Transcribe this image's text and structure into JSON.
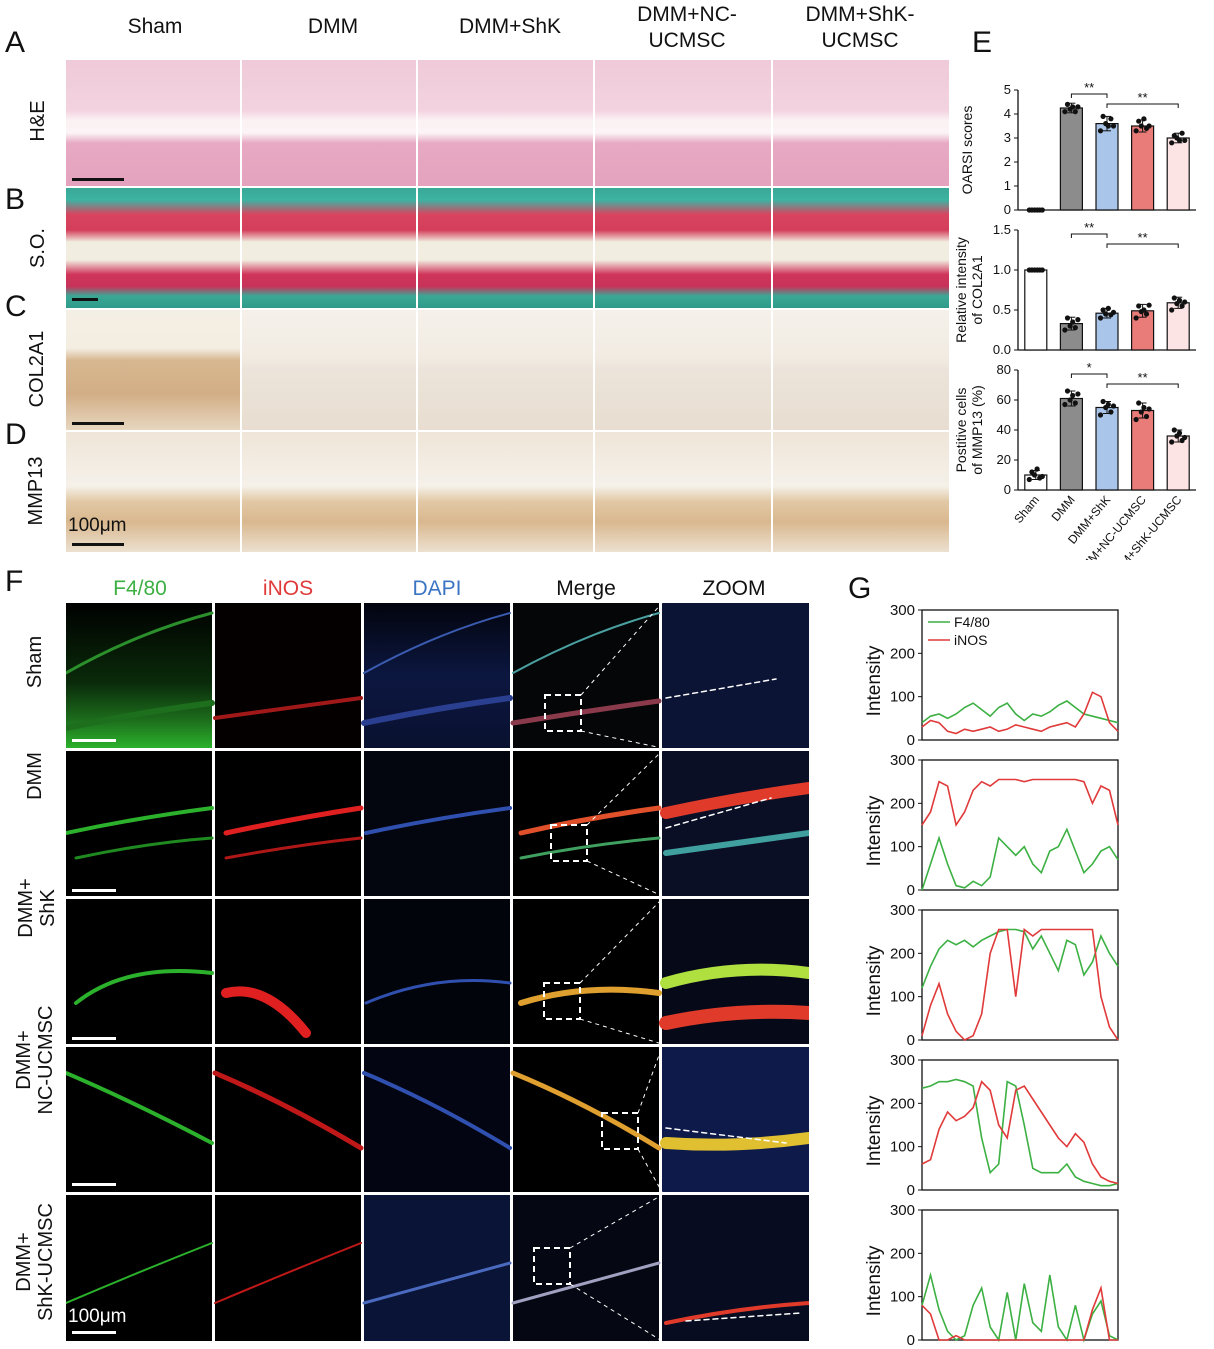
{
  "panel_letters": {
    "A": "A",
    "B": "B",
    "C": "C",
    "D": "D",
    "E": "E",
    "F": "F",
    "G": "G"
  },
  "groups": [
    "Sham",
    "DMM",
    "DMM+ShK",
    "DMM+NC-\nUCMSC",
    "DMM+ShK-\nUCMSC"
  ],
  "stain_rows": [
    "H&E",
    "S.O.",
    "COL2A1",
    "MMP13"
  ],
  "scale_bar_label_top": "100μm",
  "fluor_channels": [
    "F4/80",
    "iNOS",
    "DAPI",
    "Merge",
    "ZOOM"
  ],
  "fluor_rows": [
    "Sham",
    "DMM",
    "DMM+\nShK",
    "DMM+\nNC-UCMSC",
    "DMM+\nShK-UCMSC"
  ],
  "scale_bar_label_fluor": "100μm",
  "chart_data": [
    {
      "panel": "E",
      "type": "bar",
      "ylabel": "OARSI scores",
      "ylim": [
        0,
        5
      ],
      "yticks": [
        0,
        1,
        2,
        3,
        4,
        5
      ],
      "categories": [
        "Sham",
        "DMM",
        "DMM+ShK",
        "DMM+NC-UCMSC",
        "DMM+ShK-UCMSC"
      ],
      "values": [
        0,
        4.25,
        3.6,
        3.5,
        3.0
      ],
      "errors": [
        0,
        0.2,
        0.3,
        0.25,
        0.2
      ],
      "points": [
        [
          0,
          0,
          0,
          0,
          0,
          0
        ],
        [
          4.1,
          4.4,
          4.2,
          4.3,
          4.1,
          4.3
        ],
        [
          3.3,
          3.9,
          3.6,
          3.5,
          3.8,
          3.5
        ],
        [
          3.3,
          3.7,
          3.5,
          3.8,
          3.4,
          3.5
        ],
        [
          2.8,
          3.1,
          3.0,
          2.9,
          3.2,
          2.9
        ]
      ],
      "colors": [
        "#ffffff",
        "#8c8c8c",
        "#a9c5e9",
        "#e97b78",
        "#fde4e4"
      ],
      "significance": [
        {
          "from": 1,
          "to": 2,
          "label": "**"
        },
        {
          "from": 2,
          "to": 4,
          "label": "**"
        }
      ]
    },
    {
      "panel": "E",
      "type": "bar",
      "ylabel": "Relative intensity\nof COL2A1",
      "ylim": [
        0,
        1.5
      ],
      "yticks": [
        0,
        0.5,
        1.0,
        1.5
      ],
      "categories": [
        "Sham",
        "DMM",
        "DMM+ShK",
        "DMM+NC-UCMSC",
        "DMM+ShK-UCMSC"
      ],
      "values": [
        1.0,
        0.33,
        0.46,
        0.49,
        0.59
      ],
      "errors": [
        0,
        0.08,
        0.06,
        0.08,
        0.07
      ],
      "points": [
        [
          1,
          1,
          1,
          1,
          1,
          1
        ],
        [
          0.25,
          0.4,
          0.3,
          0.35,
          0.28,
          0.38
        ],
        [
          0.4,
          0.5,
          0.45,
          0.52,
          0.44,
          0.47
        ],
        [
          0.4,
          0.55,
          0.48,
          0.5,
          0.45,
          0.56
        ],
        [
          0.5,
          0.65,
          0.58,
          0.62,
          0.55,
          0.6
        ]
      ],
      "colors": [
        "#ffffff",
        "#8c8c8c",
        "#a9c5e9",
        "#e97b78",
        "#fde4e4"
      ],
      "significance": [
        {
          "from": 1,
          "to": 2,
          "label": "**"
        },
        {
          "from": 2,
          "to": 4,
          "label": "**"
        }
      ]
    },
    {
      "panel": "E",
      "type": "bar",
      "ylabel": "Postitive cells\nof MMP13 (%)",
      "ylim": [
        0,
        80
      ],
      "yticks": [
        0,
        20,
        40,
        60,
        80
      ],
      "categories": [
        "Sham",
        "DMM",
        "DMM+ShK",
        "DMM+NC-UCMSC",
        "DMM+ShK-UCMSC"
      ],
      "values": [
        10,
        61,
        55,
        53,
        36
      ],
      "errors": [
        3,
        5,
        4,
        5,
        4
      ],
      "points": [
        [
          7,
          12,
          10,
          14,
          8,
          9
        ],
        [
          57,
          66,
          60,
          63,
          58,
          64
        ],
        [
          50,
          59,
          55,
          57,
          52,
          56
        ],
        [
          47,
          58,
          52,
          55,
          49,
          54
        ],
        [
          32,
          40,
          36,
          38,
          33,
          35
        ]
      ],
      "colors": [
        "#ffffff",
        "#8c8c8c",
        "#a9c5e9",
        "#e97b78",
        "#fde4e4"
      ],
      "significance": [
        {
          "from": 1,
          "to": 2,
          "label": "*"
        },
        {
          "from": 2,
          "to": 4,
          "label": "**"
        }
      ]
    },
    {
      "panel": "G",
      "type": "line",
      "ylabel": "Intensity",
      "ylim": [
        0,
        300
      ],
      "yticks": [
        0,
        100,
        200,
        300
      ],
      "legend": [
        "F4/80",
        "iNOS"
      ],
      "legend_position": "top-left",
      "colors": [
        "#3cb043",
        "#e03a3a"
      ],
      "series": [
        {
          "name": "F4/80",
          "values": [
            40,
            55,
            60,
            50,
            60,
            75,
            85,
            70,
            55,
            75,
            85,
            60,
            45,
            60,
            55,
            65,
            80,
            90,
            75,
            60,
            55,
            50,
            45,
            40
          ]
        },
        {
          "name": "iNOS",
          "values": [
            30,
            45,
            40,
            20,
            15,
            25,
            20,
            25,
            30,
            20,
            25,
            35,
            30,
            25,
            20,
            30,
            35,
            40,
            30,
            60,
            110,
            100,
            40,
            20
          ]
        }
      ]
    },
    {
      "panel": "G",
      "type": "line",
      "ylabel": "Intensity",
      "ylim": [
        0,
        300
      ],
      "yticks": [
        0,
        100,
        200,
        300
      ],
      "colors": [
        "#3cb043",
        "#e03a3a"
      ],
      "series": [
        {
          "name": "F4/80",
          "values": [
            0,
            60,
            120,
            60,
            10,
            5,
            20,
            10,
            30,
            120,
            100,
            80,
            100,
            60,
            40,
            90,
            100,
            140,
            90,
            40,
            60,
            90,
            100,
            70
          ]
        },
        {
          "name": "iNOS",
          "values": [
            150,
            180,
            250,
            240,
            150,
            180,
            230,
            250,
            240,
            255,
            255,
            255,
            250,
            255,
            255,
            255,
            255,
            255,
            255,
            250,
            200,
            240,
            230,
            150
          ]
        }
      ]
    },
    {
      "panel": "G",
      "type": "line",
      "ylabel": "Intensity",
      "ylim": [
        0,
        300
      ],
      "yticks": [
        0,
        100,
        200,
        300
      ],
      "colors": [
        "#3cb043",
        "#e03a3a"
      ],
      "series": [
        {
          "name": "F4/80",
          "values": [
            120,
            170,
            210,
            230,
            220,
            230,
            215,
            230,
            240,
            250,
            255,
            255,
            250,
            210,
            240,
            200,
            160,
            230,
            220,
            150,
            180,
            240,
            200,
            170
          ]
        },
        {
          "name": "iNOS",
          "values": [
            10,
            80,
            130,
            60,
            20,
            0,
            10,
            60,
            200,
            255,
            255,
            100,
            255,
            240,
            255,
            255,
            255,
            255,
            255,
            255,
            255,
            100,
            30,
            0
          ]
        }
      ]
    },
    {
      "panel": "G",
      "type": "line",
      "ylabel": "Intensity",
      "ylim": [
        0,
        300
      ],
      "yticks": [
        0,
        100,
        200,
        300
      ],
      "colors": [
        "#3cb043",
        "#e03a3a"
      ],
      "series": [
        {
          "name": "F4/80",
          "values": [
            235,
            240,
            250,
            250,
            255,
            250,
            240,
            120,
            40,
            60,
            250,
            240,
            150,
            50,
            40,
            40,
            40,
            60,
            30,
            20,
            15,
            10,
            10,
            15
          ]
        },
        {
          "name": "iNOS",
          "values": [
            60,
            70,
            140,
            180,
            160,
            170,
            190,
            250,
            230,
            150,
            120,
            230,
            240,
            210,
            180,
            150,
            120,
            100,
            130,
            110,
            60,
            30,
            20,
            15
          ]
        }
      ]
    },
    {
      "panel": "G",
      "type": "line",
      "ylabel": "Intensity",
      "ylim": [
        0,
        300
      ],
      "yticks": [
        0,
        100,
        200,
        300
      ],
      "colors": [
        "#3cb043",
        "#e03a3a"
      ],
      "series": [
        {
          "name": "F4/80",
          "values": [
            80,
            150,
            70,
            20,
            0,
            10,
            80,
            120,
            30,
            0,
            110,
            0,
            130,
            40,
            20,
            150,
            30,
            0,
            80,
            0,
            60,
            90,
            10,
            0
          ]
        },
        {
          "name": "iNOS",
          "values": [
            80,
            60,
            0,
            0,
            10,
            0,
            0,
            0,
            0,
            0,
            0,
            0,
            0,
            0,
            0,
            0,
            0,
            0,
            0,
            0,
            70,
            120,
            0,
            0
          ]
        }
      ]
    }
  ]
}
